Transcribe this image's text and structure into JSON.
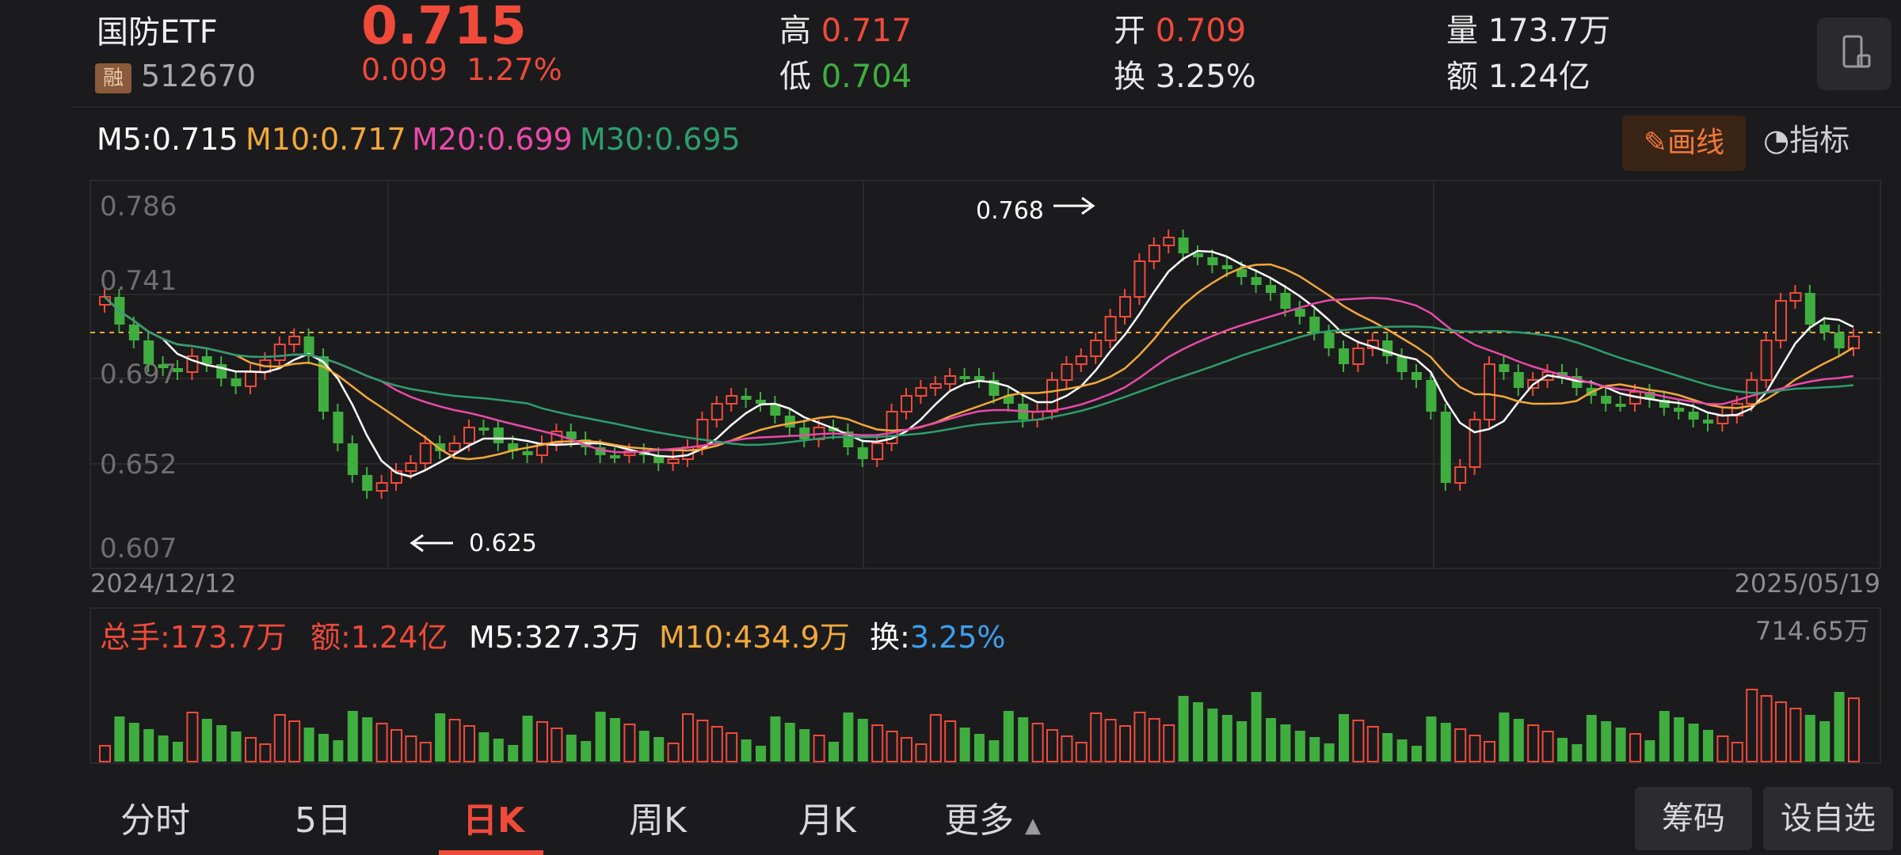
{
  "quote": {
    "name": "国防ETF",
    "margin_badge": "融",
    "code": "512670",
    "price": "0.715",
    "change": "0.009",
    "change_pct": "1.27%",
    "high_label": "高",
    "high": "0.717",
    "low_label": "低",
    "low": "0.704",
    "open_label": "开",
    "open": "0.709",
    "turnover_label": "换",
    "turnover": "3.25%",
    "volume_label": "量",
    "volume": "173.7万",
    "amount_label": "额",
    "amount": "1.24亿"
  },
  "ma": {
    "m5": "M5:0.715",
    "m10": "M10:0.717",
    "m20": "M20:0.699",
    "m30": "M30:0.695"
  },
  "toolbar": {
    "draw_label": "画线",
    "indicator_label": "指标"
  },
  "axis": {
    "y_ticks": [
      "0.786",
      "0.741",
      "0.697",
      "0.652",
      "0.607"
    ],
    "start_date": "2024/12/12",
    "end_date": "2025/05/19",
    "high_mark": "0.768",
    "low_mark": "0.625",
    "vol_max": "714.65万"
  },
  "volume_info": {
    "total": "总手:173.7万",
    "amount": "额:1.24亿",
    "m5": "M5:327.3万",
    "m10": "M10:434.9万",
    "turnover_label": "换:",
    "turnover_value": "3.25%"
  },
  "tabs": [
    "分时",
    "5日",
    "日K",
    "周K",
    "月K",
    "更多"
  ],
  "buttons": {
    "chips": "筹码",
    "add_watch": "设自选"
  },
  "colors": {
    "up": "#f04a3a",
    "down": "#3fae3f",
    "m5": "#ffffff",
    "m10": "#f2a83a",
    "m20": "#e84aa8",
    "m30": "#2e9e6e"
  }
}
